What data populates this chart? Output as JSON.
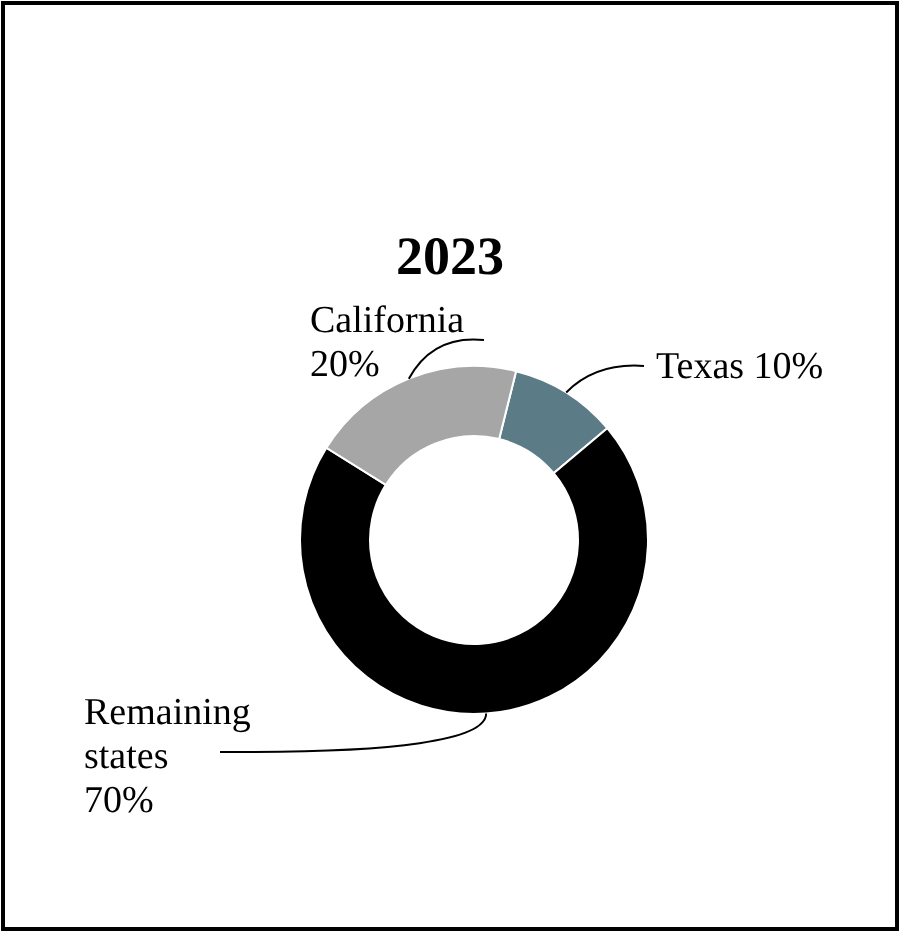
{
  "chart_data": {
    "type": "donut",
    "title": "2023",
    "categories": [
      "Texas",
      "Remaining states",
      "California"
    ],
    "values": [
      10,
      70,
      20
    ],
    "value_labels": [
      "10%",
      "70%",
      "20%"
    ],
    "colors": [
      "#5b7b87",
      "#000000",
      "#a6a6a6"
    ]
  }
}
